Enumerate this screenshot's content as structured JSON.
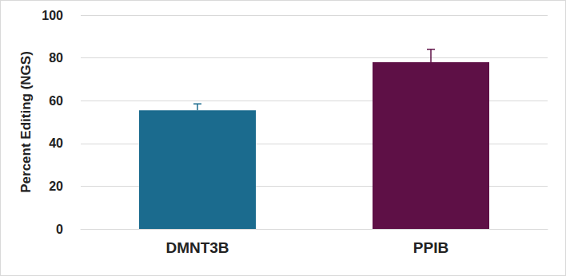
{
  "chart_data": {
    "type": "bar",
    "y_label": "Percent Editing (NGS)",
    "categories": [
      "DMNT3B",
      "PPIB"
    ],
    "values": [
      55.5,
      78
    ],
    "errors": [
      3,
      6
    ],
    "colors": [
      "#1b6b8e",
      "#5e1046"
    ],
    "ylim": [
      0,
      100
    ],
    "yticks": [
      0,
      20,
      40,
      60,
      80,
      100
    ],
    "grid": true
  }
}
